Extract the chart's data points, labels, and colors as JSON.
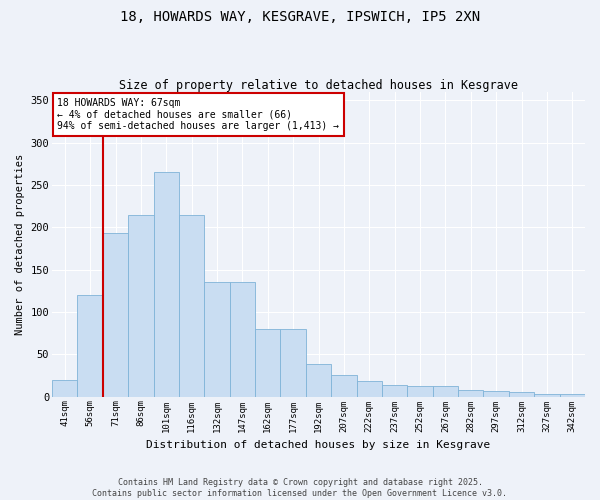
{
  "title_line1": "18, HOWARDS WAY, KESGRAVE, IPSWICH, IP5 2XN",
  "title_line2": "Size of property relative to detached houses in Kesgrave",
  "xlabel": "Distribution of detached houses by size in Kesgrave",
  "ylabel": "Number of detached properties",
  "categories": [
    "41sqm",
    "56sqm",
    "71sqm",
    "86sqm",
    "101sqm",
    "116sqm",
    "132sqm",
    "147sqm",
    "162sqm",
    "177sqm",
    "192sqm",
    "207sqm",
    "222sqm",
    "237sqm",
    "252sqm",
    "267sqm",
    "282sqm",
    "297sqm",
    "312sqm",
    "327sqm",
    "342sqm"
  ],
  "values": [
    20,
    120,
    193,
    215,
    265,
    215,
    135,
    135,
    80,
    80,
    38,
    25,
    18,
    14,
    12,
    12,
    8,
    7,
    5,
    3,
    3
  ],
  "bar_color": "#c9ddf2",
  "bar_edge_color": "#7fb3d8",
  "vline_color": "#cc0000",
  "annotation_text": "18 HOWARDS WAY: 67sqm\n← 4% of detached houses are smaller (66)\n94% of semi-detached houses are larger (1,413) →",
  "annotation_box_color": "#cc0000",
  "background_color": "#eef2f9",
  "footer": "Contains HM Land Registry data © Crown copyright and database right 2025.\nContains public sector information licensed under the Open Government Licence v3.0.",
  "ylim": [
    0,
    360
  ],
  "yticks": [
    0,
    50,
    100,
    150,
    200,
    250,
    300,
    350
  ]
}
